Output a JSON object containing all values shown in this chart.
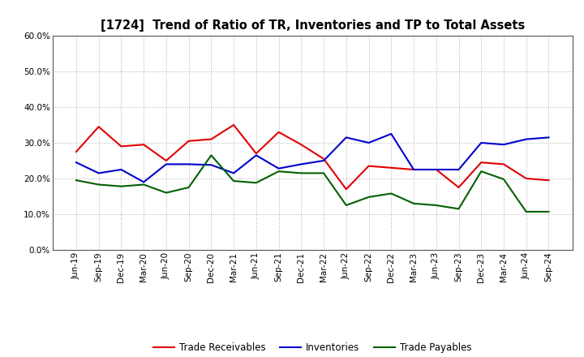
{
  "title": "[1724]  Trend of Ratio of TR, Inventories and TP to Total Assets",
  "x_labels": [
    "Jun-19",
    "Sep-19",
    "Dec-19",
    "Mar-20",
    "Jun-20",
    "Sep-20",
    "Dec-20",
    "Mar-21",
    "Jun-21",
    "Sep-21",
    "Dec-21",
    "Mar-22",
    "Jun-22",
    "Sep-22",
    "Dec-22",
    "Mar-23",
    "Jun-23",
    "Sep-23",
    "Dec-23",
    "Mar-24",
    "Jun-24",
    "Sep-24"
  ],
  "trade_receivables": [
    0.275,
    0.345,
    0.29,
    0.295,
    0.25,
    0.305,
    0.31,
    0.35,
    0.27,
    0.33,
    0.295,
    0.255,
    0.17,
    0.235,
    0.23,
    0.225,
    0.225,
    0.175,
    0.245,
    0.24,
    0.2,
    0.195
  ],
  "inventories": [
    0.245,
    0.215,
    0.225,
    0.19,
    0.24,
    0.24,
    0.238,
    0.215,
    0.265,
    0.228,
    0.24,
    0.25,
    0.315,
    0.3,
    0.325,
    0.225,
    0.225,
    0.225,
    0.3,
    0.295,
    0.31,
    0.315
  ],
  "trade_payables": [
    0.195,
    0.183,
    0.178,
    0.183,
    0.16,
    0.175,
    0.265,
    0.193,
    0.188,
    0.22,
    0.215,
    0.215,
    0.125,
    0.148,
    0.158,
    0.13,
    0.125,
    0.115,
    0.22,
    0.198,
    0.107,
    0.107
  ],
  "tr_color": "#e00000",
  "inv_color": "#0000cc",
  "tp_color": "#006000",
  "ylim": [
    0.0,
    0.6
  ],
  "yticks": [
    0.0,
    0.1,
    0.2,
    0.3,
    0.4,
    0.5,
    0.6
  ],
  "legend_labels": [
    "Trade Receivables",
    "Inventories",
    "Trade Payables"
  ],
  "background_color": "#ffffff",
  "grid_color": "#999999",
  "title_fontsize": 10.5,
  "tick_fontsize": 7.5,
  "legend_fontsize": 8.5
}
